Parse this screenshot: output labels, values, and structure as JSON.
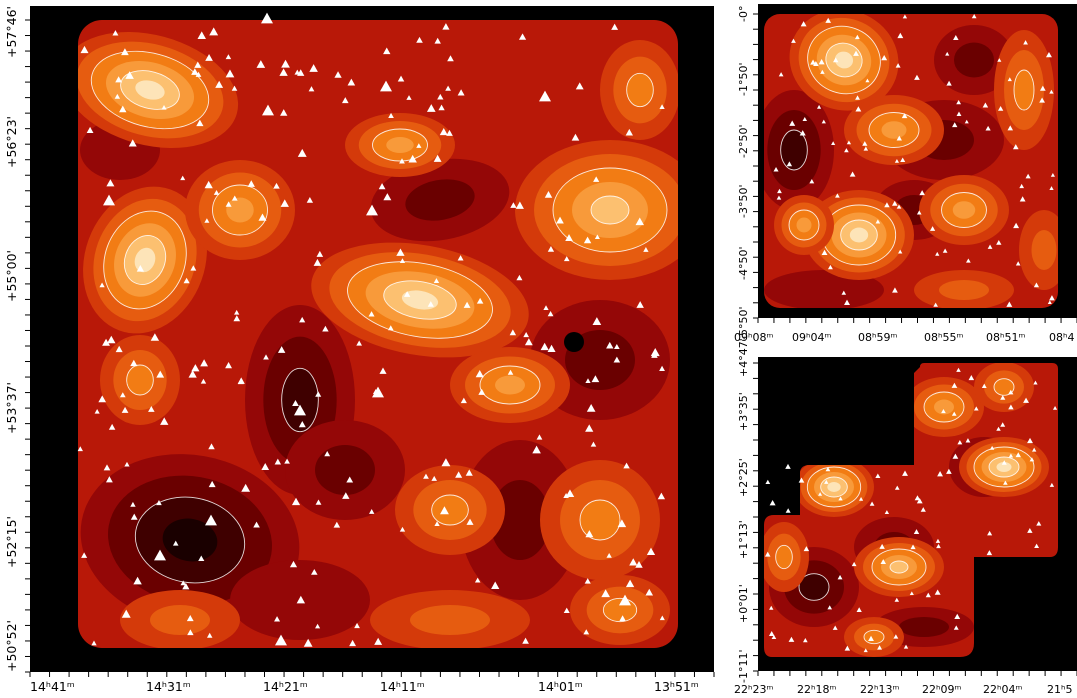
{
  "figure": {
    "panel_main": {
      "x_ticks": [
        "14ʰ41ᵐ",
        "14ʰ31ᵐ",
        "14ʰ21ᵐ",
        "14ʰ11ᵐ",
        "14ʰ01ᵐ",
        "13ʰ51ᵐ"
      ],
      "y_ticks": [
        "+57°46'",
        "+56°23'",
        "+55°00'",
        "+53°37'",
        "+52°15'",
        "+50°52'"
      ]
    },
    "panel_top_right": {
      "x_ticks": [
        "09ʰ08ᵐ",
        "09ʰ04ᵐ",
        "08ʰ59ᵐ",
        "08ʰ55ᵐ",
        "08ʰ51ᵐ",
        "08ʰ4"
      ],
      "y_ticks": [
        "-0°",
        "-1°50'",
        "-2°50'",
        "-3°50'",
        "-4°50'",
        "-5°50'"
      ]
    },
    "panel_bottom_right": {
      "x_ticks": [
        "22ʰ23ᵐ",
        "22ʰ18ᵐ",
        "22ʰ13ᵐ",
        "22ʰ09ᵐ",
        "22ʰ04ᵐ",
        "21ʰ5"
      ],
      "y_ticks": [
        "+4°47'",
        "+3°35'",
        "+2°25'",
        "+1°13'",
        "+0°01'",
        "-1°11'"
      ]
    },
    "colors": {
      "background": "#000000",
      "contour_line": "#ffffff",
      "marker": "#ffffff",
      "density_ramp": [
        "#1a0000",
        "#3f0000",
        "#6a0000",
        "#940707",
        "#b81808",
        "#d43a0a",
        "#e65c10",
        "#f27c14",
        "#f89a3a",
        "#fcc070",
        "#fde4b8"
      ]
    }
  }
}
